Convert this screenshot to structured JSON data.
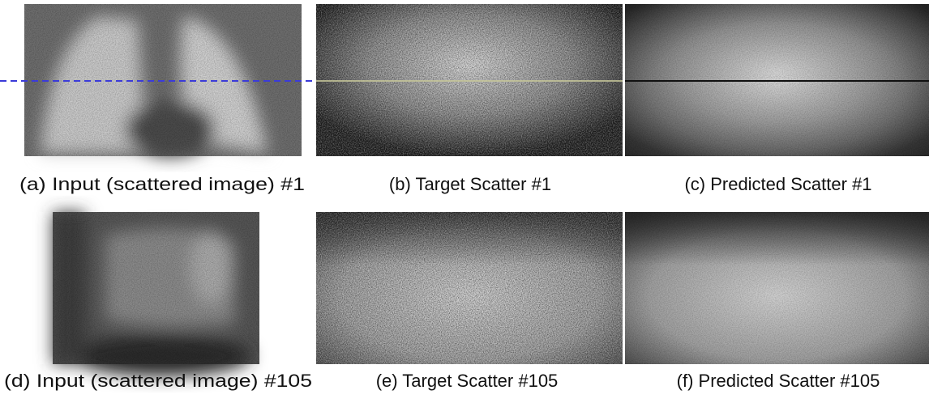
{
  "figure": {
    "panels": [
      {
        "caption": "(a) Input (scattered image) #1"
      },
      {
        "caption": "(b) Target Scatter #1"
      },
      {
        "caption": "(c) Predicted Scatter #1"
      },
      {
        "caption": "(d) Input (scattered image) #105"
      },
      {
        "caption": "(e) Target Scatter #105"
      },
      {
        "caption": "(f) Predicted Scatter #105"
      }
    ]
  }
}
